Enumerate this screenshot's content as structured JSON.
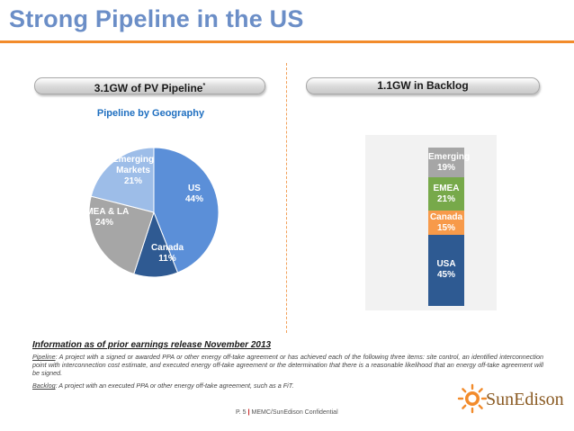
{
  "title": "Strong Pipeline in the US",
  "left_header": {
    "label": "3.1GW of PV Pipeline",
    "mark": "*"
  },
  "right_header": {
    "label": "1.1GW in Backlog"
  },
  "pie_title": "Pipeline by Geography",
  "chart_data": [
    {
      "type": "pie",
      "title": "Pipeline by Geography",
      "slices": [
        {
          "label": "US",
          "value": 44,
          "pct_text": "44%",
          "color": "#5b8fd8"
        },
        {
          "label": "Canada",
          "value": 11,
          "pct_text": "11%",
          "color": "#2f5a92"
        },
        {
          "label": "EMEA & LA",
          "value": 24,
          "pct_text": "24%",
          "color": "#a6a6a6"
        },
        {
          "label": "Emerging Markets",
          "value": 21,
          "pct_text": "21%",
          "color": "#9dbde8"
        }
      ]
    },
    {
      "type": "bar",
      "stacked": true,
      "title": "",
      "segments": [
        {
          "label": "USA",
          "value": 45,
          "pct_text": "45%",
          "color": "#2e5a92"
        },
        {
          "label": "Canada",
          "value": 15,
          "pct_text": "15%",
          "color": "#f79a4a"
        },
        {
          "label": "EMEA",
          "value": 21,
          "pct_text": "21%",
          "color": "#77a94a"
        },
        {
          "label": "Emerging",
          "value": 19,
          "pct_text": "19%",
          "color": "#a6a6a6"
        }
      ]
    }
  ],
  "info_heading": "Information as of prior earnings release November 2013",
  "notes": {
    "pipeline_term": "Pipeline",
    "pipeline_text": ": A project with a signed or awarded PPA or other energy off-take agreement or has achieved each of the following three items: site control, an identified interconnection point with interconnection cost estimate, and executed energy off-take agreement or the determination that there is a reasonable likelihood that an energy off-take agreement will be signed.",
    "backlog_term": "Backlog",
    "backlog_text": ": A project with an executed PPA or other energy off-take agreement, such as a FiT."
  },
  "footer": {
    "page": "P. 5",
    "separator": "|",
    "text": "MEMC/SunEdison Confidential"
  },
  "logo": {
    "text": "SunEdison",
    "colors": {
      "sun": "#f28b2b",
      "text": "#8a5a22"
    }
  }
}
